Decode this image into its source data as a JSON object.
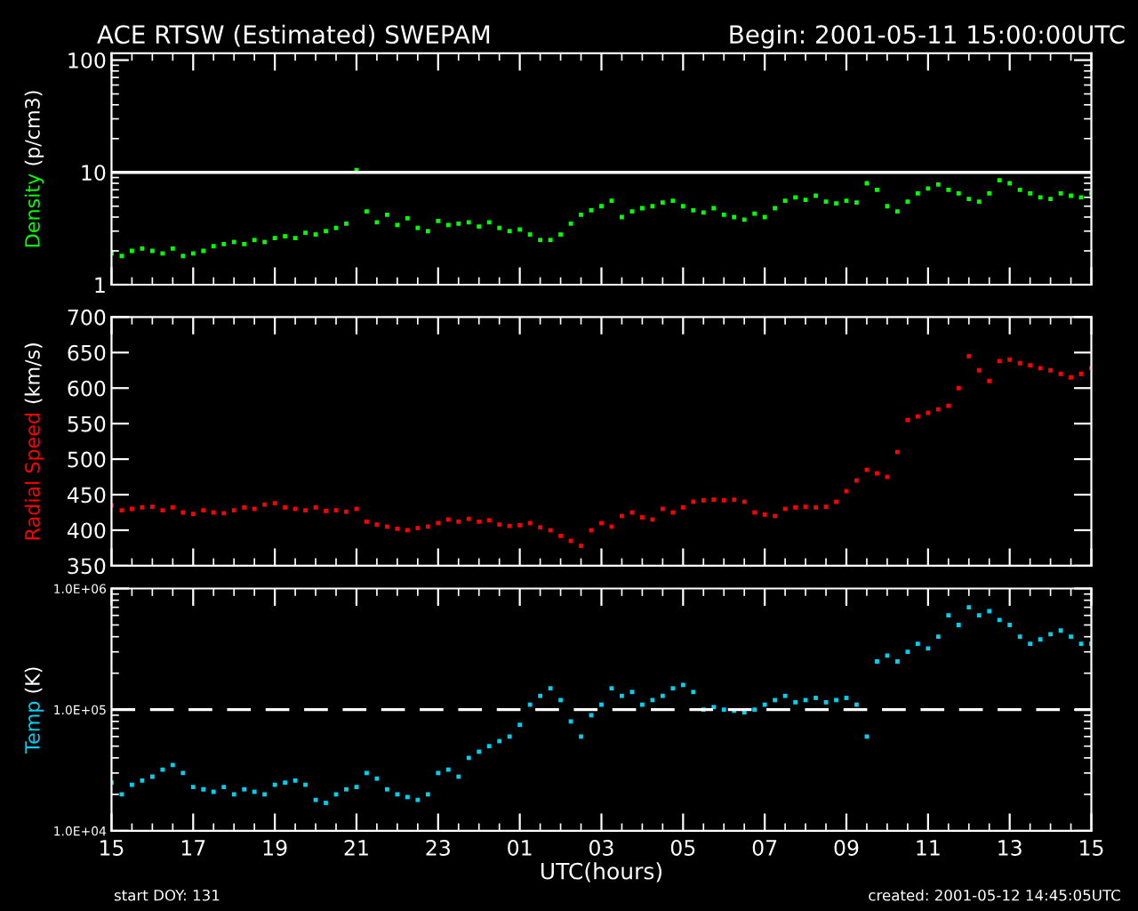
{
  "chart_data": [
    {
      "type": "scatter",
      "title": "ACE RTSW (Estimated) SWEPAM",
      "subtitle": "Begin: 2001-05-11 15:00:00UTC",
      "ylabel": "Density (p/cm3)",
      "log": "y",
      "marker": "square",
      "tick_labels": "y",
      "xlim": [
        "2001-05-11T15:00",
        "2001-05-12T15:00"
      ],
      "xticks": [
        {
          "value": "2001-05-11T15:00",
          "label": null
        },
        {
          "value": "2001-05-11T17:00",
          "label": null
        },
        {
          "value": "2001-05-11T19:00",
          "label": null
        },
        {
          "value": "2001-05-11T21:00",
          "label": null
        },
        {
          "value": "2001-05-11T23:00",
          "label": null
        },
        {
          "value": "2001-05-12T01:00",
          "label": null
        },
        {
          "value": "2001-05-12T03:00",
          "label": null
        },
        {
          "value": "2001-05-12T05:00",
          "label": null
        },
        {
          "value": "2001-05-12T07:00",
          "label": null
        },
        {
          "value": "2001-05-12T09:00",
          "label": null
        },
        {
          "value": "2001-05-12T11:00",
          "label": null
        },
        {
          "value": "2001-05-12T13:00",
          "label": null
        },
        {
          "value": "2001-05-12T15:00",
          "label": null
        }
      ],
      "ylim": [
        1,
        115
      ],
      "yticks": [
        1,
        10,
        100
      ],
      "ref_lines": [
        {
          "axis": "y",
          "value": 10,
          "color": "#ffffff",
          "line_style": "solid"
        }
      ],
      "x": [
        "2001-05-11T15:00",
        "2001-05-11T15:15",
        "2001-05-11T15:30",
        "2001-05-11T15:45",
        "2001-05-11T16:00",
        "2001-05-11T16:15",
        "2001-05-11T16:30",
        "2001-05-11T16:45",
        "2001-05-11T17:00",
        "2001-05-11T17:15",
        "2001-05-11T17:30",
        "2001-05-11T17:45",
        "2001-05-11T18:00",
        "2001-05-11T18:15",
        "2001-05-11T18:30",
        "2001-05-11T18:45",
        "2001-05-11T19:00",
        "2001-05-11T19:15",
        "2001-05-11T19:30",
        "2001-05-11T19:45",
        "2001-05-11T20:00",
        "2001-05-11T20:15",
        "2001-05-11T20:30",
        "2001-05-11T20:45",
        "2001-05-11T21:00",
        "2001-05-11T21:15",
        "2001-05-11T21:30",
        "2001-05-11T21:45",
        "2001-05-11T22:00",
        "2001-05-11T22:15",
        "2001-05-11T22:30",
        "2001-05-11T22:45",
        "2001-05-11T23:00",
        "2001-05-11T23:15",
        "2001-05-11T23:30",
        "2001-05-11T23:45",
        "2001-05-12T00:00",
        "2001-05-12T00:15",
        "2001-05-12T00:30",
        "2001-05-12T00:45",
        "2001-05-12T01:00",
        "2001-05-12T01:15",
        "2001-05-12T01:30",
        "2001-05-12T01:45",
        "2001-05-12T02:00",
        "2001-05-12T02:15",
        "2001-05-12T02:30",
        "2001-05-12T02:45",
        "2001-05-12T03:00",
        "2001-05-12T03:15",
        "2001-05-12T03:30",
        "2001-05-12T03:45",
        "2001-05-12T04:00",
        "2001-05-12T04:15",
        "2001-05-12T04:30",
        "2001-05-12T04:45",
        "2001-05-12T05:00",
        "2001-05-12T05:15",
        "2001-05-12T05:30",
        "2001-05-12T05:45",
        "2001-05-12T06:00",
        "2001-05-12T06:15",
        "2001-05-12T06:30",
        "2001-05-12T06:45",
        "2001-05-12T07:00",
        "2001-05-12T07:15",
        "2001-05-12T07:30",
        "2001-05-12T07:45",
        "2001-05-12T08:00",
        "2001-05-12T08:15",
        "2001-05-12T08:30",
        "2001-05-12T08:45",
        "2001-05-12T09:00",
        "2001-05-12T09:15",
        "2001-05-12T09:30",
        "2001-05-12T09:45",
        "2001-05-12T10:00",
        "2001-05-12T10:15",
        "2001-05-12T10:30",
        "2001-05-12T10:45",
        "2001-05-12T11:00",
        "2001-05-12T11:15",
        "2001-05-12T11:30",
        "2001-05-12T11:45",
        "2001-05-12T12:00",
        "2001-05-12T12:15",
        "2001-05-12T12:30",
        "2001-05-12T12:45",
        "2001-05-12T13:00",
        "2001-05-12T13:15",
        "2001-05-12T13:30",
        "2001-05-12T13:45",
        "2001-05-12T14:00",
        "2001-05-12T14:15",
        "2001-05-12T14:30",
        "2001-05-12T14:45",
        "2001-05-12T15:00"
      ],
      "series": [
        {
          "color": "#00ff00",
          "values": [
            1.9,
            1.8,
            2.0,
            2.1,
            2.0,
            1.9,
            2.1,
            1.8,
            1.9,
            2.0,
            2.2,
            2.3,
            2.4,
            2.3,
            2.5,
            2.4,
            2.6,
            2.7,
            2.6,
            2.9,
            2.8,
            3.0,
            3.2,
            3.5,
            10.5,
            4.5,
            3.6,
            4.2,
            3.4,
            3.9,
            3.2,
            3.0,
            3.7,
            3.4,
            3.5,
            3.6,
            3.3,
            3.6,
            3.2,
            3.0,
            3.1,
            2.8,
            2.5,
            2.5,
            2.8,
            3.5,
            4.2,
            4.6,
            5.0,
            5.6,
            4.0,
            4.5,
            4.8,
            5.0,
            5.4,
            5.6,
            5.0,
            4.6,
            4.4,
            4.8,
            4.2,
            4.0,
            3.8,
            4.3,
            4.0,
            4.8,
            5.6,
            6.0,
            5.7,
            6.2,
            5.5,
            5.3,
            5.6,
            5.4,
            8.0,
            7.0,
            5.0,
            4.5,
            5.5,
            6.5,
            7.2,
            7.8,
            7.0,
            6.5,
            5.8,
            5.5,
            6.5,
            8.5,
            8.0,
            7.0,
            6.5,
            6.0,
            5.8,
            6.5,
            6.2,
            6.0,
            6.5
          ]
        }
      ]
    },
    {
      "type": "scatter",
      "ylabel": "Radial Speed (km/s)",
      "marker": "square",
      "tick_labels": "y",
      "xlim": [
        "2001-05-11T15:00",
        "2001-05-12T15:00"
      ],
      "xticks": [
        {
          "value": "2001-05-11T15:00",
          "label": null
        },
        {
          "value": "2001-05-11T17:00",
          "label": null
        },
        {
          "value": "2001-05-11T19:00",
          "label": null
        },
        {
          "value": "2001-05-11T21:00",
          "label": null
        },
        {
          "value": "2001-05-11T23:00",
          "label": null
        },
        {
          "value": "2001-05-12T01:00",
          "label": null
        },
        {
          "value": "2001-05-12T03:00",
          "label": null
        },
        {
          "value": "2001-05-12T05:00",
          "label": null
        },
        {
          "value": "2001-05-12T07:00",
          "label": null
        },
        {
          "value": "2001-05-12T09:00",
          "label": null
        },
        {
          "value": "2001-05-12T11:00",
          "label": null
        },
        {
          "value": "2001-05-12T13:00",
          "label": null
        },
        {
          "value": "2001-05-12T15:00",
          "label": null
        }
      ],
      "ylim": [
        350,
        700
      ],
      "yticks": [
        350,
        400,
        450,
        500,
        550,
        600,
        650,
        700
      ],
      "x": [
        "2001-05-11T15:00",
        "2001-05-11T15:15",
        "2001-05-11T15:30",
        "2001-05-11T15:45",
        "2001-05-11T16:00",
        "2001-05-11T16:15",
        "2001-05-11T16:30",
        "2001-05-11T16:45",
        "2001-05-11T17:00",
        "2001-05-11T17:15",
        "2001-05-11T17:30",
        "2001-05-11T17:45",
        "2001-05-11T18:00",
        "2001-05-11T18:15",
        "2001-05-11T18:30",
        "2001-05-11T18:45",
        "2001-05-11T19:00",
        "2001-05-11T19:15",
        "2001-05-11T19:30",
        "2001-05-11T19:45",
        "2001-05-11T20:00",
        "2001-05-11T20:15",
        "2001-05-11T20:30",
        "2001-05-11T20:45",
        "2001-05-11T21:00",
        "2001-05-11T21:15",
        "2001-05-11T21:30",
        "2001-05-11T21:45",
        "2001-05-11T22:00",
        "2001-05-11T22:15",
        "2001-05-11T22:30",
        "2001-05-11T22:45",
        "2001-05-11T23:00",
        "2001-05-11T23:15",
        "2001-05-11T23:30",
        "2001-05-11T23:45",
        "2001-05-12T00:00",
        "2001-05-12T00:15",
        "2001-05-12T00:30",
        "2001-05-12T00:45",
        "2001-05-12T01:00",
        "2001-05-12T01:15",
        "2001-05-12T01:30",
        "2001-05-12T01:45",
        "2001-05-12T02:00",
        "2001-05-12T02:15",
        "2001-05-12T02:30",
        "2001-05-12T02:45",
        "2001-05-12T03:00",
        "2001-05-12T03:15",
        "2001-05-12T03:30",
        "2001-05-12T03:45",
        "2001-05-12T04:00",
        "2001-05-12T04:15",
        "2001-05-12T04:30",
        "2001-05-12T04:45",
        "2001-05-12T05:00",
        "2001-05-12T05:15",
        "2001-05-12T05:30",
        "2001-05-12T05:45",
        "2001-05-12T06:00",
        "2001-05-12T06:15",
        "2001-05-12T06:30",
        "2001-05-12T06:45",
        "2001-05-12T07:00",
        "2001-05-12T07:15",
        "2001-05-12T07:30",
        "2001-05-12T07:45",
        "2001-05-12T08:00",
        "2001-05-12T08:15",
        "2001-05-12T08:30",
        "2001-05-12T08:45",
        "2001-05-12T09:00",
        "2001-05-12T09:15",
        "2001-05-12T09:30",
        "2001-05-12T09:45",
        "2001-05-12T10:00",
        "2001-05-12T10:15",
        "2001-05-12T10:30",
        "2001-05-12T10:45",
        "2001-05-12T11:00",
        "2001-05-12T11:15",
        "2001-05-12T11:30",
        "2001-05-12T11:45",
        "2001-05-12T12:00",
        "2001-05-12T12:15",
        "2001-05-12T12:30",
        "2001-05-12T12:45",
        "2001-05-12T13:00",
        "2001-05-12T13:15",
        "2001-05-12T13:30",
        "2001-05-12T13:45",
        "2001-05-12T14:00",
        "2001-05-12T14:15",
        "2001-05-12T14:30",
        "2001-05-12T14:45",
        "2001-05-12T15:00"
      ],
      "series": [
        {
          "color": "#ff0000",
          "values": [
            435,
            428,
            430,
            432,
            433,
            428,
            432,
            425,
            423,
            428,
            425,
            424,
            428,
            432,
            430,
            436,
            438,
            432,
            430,
            428,
            432,
            427,
            428,
            426,
            430,
            412,
            408,
            405,
            402,
            400,
            403,
            405,
            410,
            415,
            412,
            416,
            412,
            414,
            408,
            406,
            407,
            410,
            404,
            400,
            392,
            385,
            378,
            400,
            410,
            405,
            420,
            425,
            418,
            415,
            430,
            425,
            432,
            440,
            442,
            443,
            442,
            443,
            440,
            425,
            422,
            420,
            430,
            432,
            433,
            432,
            433,
            440,
            455,
            470,
            485,
            480,
            475,
            510,
            555,
            560,
            565,
            570,
            575,
            600,
            645,
            625,
            610,
            638,
            640,
            635,
            632,
            628,
            625,
            620,
            615,
            620,
            628
          ]
        }
      ]
    },
    {
      "type": "scatter",
      "ylabel": "Temp (K)",
      "xlabel": "UTC(hours)",
      "log": "y",
      "marker": "square",
      "annotations": [
        "start DOY: 131",
        "created: 2001-05-12 14:45:05UTC"
      ],
      "xlim": [
        "2001-05-11T15:00",
        "2001-05-12T15:00"
      ],
      "xticks": [
        {
          "value": "2001-05-11T15:00",
          "label": "15"
        },
        {
          "value": "2001-05-11T17:00",
          "label": "17"
        },
        {
          "value": "2001-05-11T19:00",
          "label": "19"
        },
        {
          "value": "2001-05-11T21:00",
          "label": "21"
        },
        {
          "value": "2001-05-11T23:00",
          "label": "23"
        },
        {
          "value": "2001-05-12T01:00",
          "label": "01"
        },
        {
          "value": "2001-05-12T03:00",
          "label": "03"
        },
        {
          "value": "2001-05-12T05:00",
          "label": "05"
        },
        {
          "value": "2001-05-12T07:00",
          "label": "07"
        },
        {
          "value": "2001-05-12T09:00",
          "label": "09"
        },
        {
          "value": "2001-05-12T11:00",
          "label": "11"
        },
        {
          "value": "2001-05-12T13:00",
          "label": "13"
        },
        {
          "value": "2001-05-12T15:00",
          "label": "15"
        }
      ],
      "ylim": [
        10000,
        1000000
      ],
      "yticks": [
        {
          "value": 10000,
          "label": "1.0E+04"
        },
        {
          "value": 100000,
          "label": "1.0E+05"
        },
        {
          "value": 1000000,
          "label": "1.0E+06"
        }
      ],
      "ref_lines": [
        {
          "axis": "y",
          "value": 100000,
          "color": "#ffffff",
          "line_style": "dashed"
        }
      ],
      "x": [
        "2001-05-11T15:00",
        "2001-05-11T15:15",
        "2001-05-11T15:30",
        "2001-05-11T15:45",
        "2001-05-11T16:00",
        "2001-05-11T16:15",
        "2001-05-11T16:30",
        "2001-05-11T16:45",
        "2001-05-11T17:00",
        "2001-05-11T17:15",
        "2001-05-11T17:30",
        "2001-05-11T17:45",
        "2001-05-11T18:00",
        "2001-05-11T18:15",
        "2001-05-11T18:30",
        "2001-05-11T18:45",
        "2001-05-11T19:00",
        "2001-05-11T19:15",
        "2001-05-11T19:30",
        "2001-05-11T19:45",
        "2001-05-11T20:00",
        "2001-05-11T20:15",
        "2001-05-11T20:30",
        "2001-05-11T20:45",
        "2001-05-11T21:00",
        "2001-05-11T21:15",
        "2001-05-11T21:30",
        "2001-05-11T21:45",
        "2001-05-11T22:00",
        "2001-05-11T22:15",
        "2001-05-11T22:30",
        "2001-05-11T22:45",
        "2001-05-11T23:00",
        "2001-05-11T23:15",
        "2001-05-11T23:30",
        "2001-05-11T23:45",
        "2001-05-12T00:00",
        "2001-05-12T00:15",
        "2001-05-12T00:30",
        "2001-05-12T00:45",
        "2001-05-12T01:00",
        "2001-05-12T01:15",
        "2001-05-12T01:30",
        "2001-05-12T01:45",
        "2001-05-12T02:00",
        "2001-05-12T02:15",
        "2001-05-12T02:30",
        "2001-05-12T02:45",
        "2001-05-12T03:00",
        "2001-05-12T03:15",
        "2001-05-12T03:30",
        "2001-05-12T03:45",
        "2001-05-12T04:00",
        "2001-05-12T04:15",
        "2001-05-12T04:30",
        "2001-05-12T04:45",
        "2001-05-12T05:00",
        "2001-05-12T05:15",
        "2001-05-12T05:30",
        "2001-05-12T05:45",
        "2001-05-12T06:00",
        "2001-05-12T06:15",
        "2001-05-12T06:30",
        "2001-05-12T06:45",
        "2001-05-12T07:00",
        "2001-05-12T07:15",
        "2001-05-12T07:30",
        "2001-05-12T07:45",
        "2001-05-12T08:00",
        "2001-05-12T08:15",
        "2001-05-12T08:30",
        "2001-05-12T08:45",
        "2001-05-12T09:00",
        "2001-05-12T09:15",
        "2001-05-12T09:30",
        "2001-05-12T09:45",
        "2001-05-12T10:00",
        "2001-05-12T10:15",
        "2001-05-12T10:30",
        "2001-05-12T10:45",
        "2001-05-12T11:00",
        "2001-05-12T11:15",
        "2001-05-12T11:30",
        "2001-05-12T11:45",
        "2001-05-12T12:00",
        "2001-05-12T12:15",
        "2001-05-12T12:30",
        "2001-05-12T12:45",
        "2001-05-12T13:00",
        "2001-05-12T13:15",
        "2001-05-12T13:30",
        "2001-05-12T13:45",
        "2001-05-12T14:00",
        "2001-05-12T14:15",
        "2001-05-12T14:30",
        "2001-05-12T14:45",
        "2001-05-12T15:00"
      ],
      "series": [
        {
          "color": "#00d0f0",
          "values": [
            25000,
            20000,
            24000,
            26000,
            28000,
            32000,
            35000,
            30000,
            23000,
            22000,
            21000,
            23000,
            20000,
            22000,
            21000,
            20000,
            24000,
            25000,
            26000,
            24000,
            18000,
            17000,
            20000,
            22000,
            23000,
            30000,
            27000,
            22000,
            20000,
            19000,
            18000,
            20000,
            30000,
            32000,
            28000,
            40000,
            45000,
            50000,
            55000,
            60000,
            75000,
            110000,
            130000,
            150000,
            120000,
            80000,
            60000,
            90000,
            110000,
            150000,
            130000,
            140000,
            110000,
            120000,
            130000,
            150000,
            160000,
            140000,
            100000,
            105000,
            100000,
            98000,
            95000,
            100000,
            110000,
            120000,
            130000,
            115000,
            120000,
            125000,
            115000,
            120000,
            125000,
            110000,
            60000,
            250000,
            280000,
            250000,
            300000,
            350000,
            320000,
            400000,
            600000,
            500000,
            700000,
            600000,
            650000,
            550000,
            500000,
            400000,
            350000,
            380000,
            420000,
            450000,
            400000,
            350000,
            350000
          ]
        }
      ]
    }
  ]
}
